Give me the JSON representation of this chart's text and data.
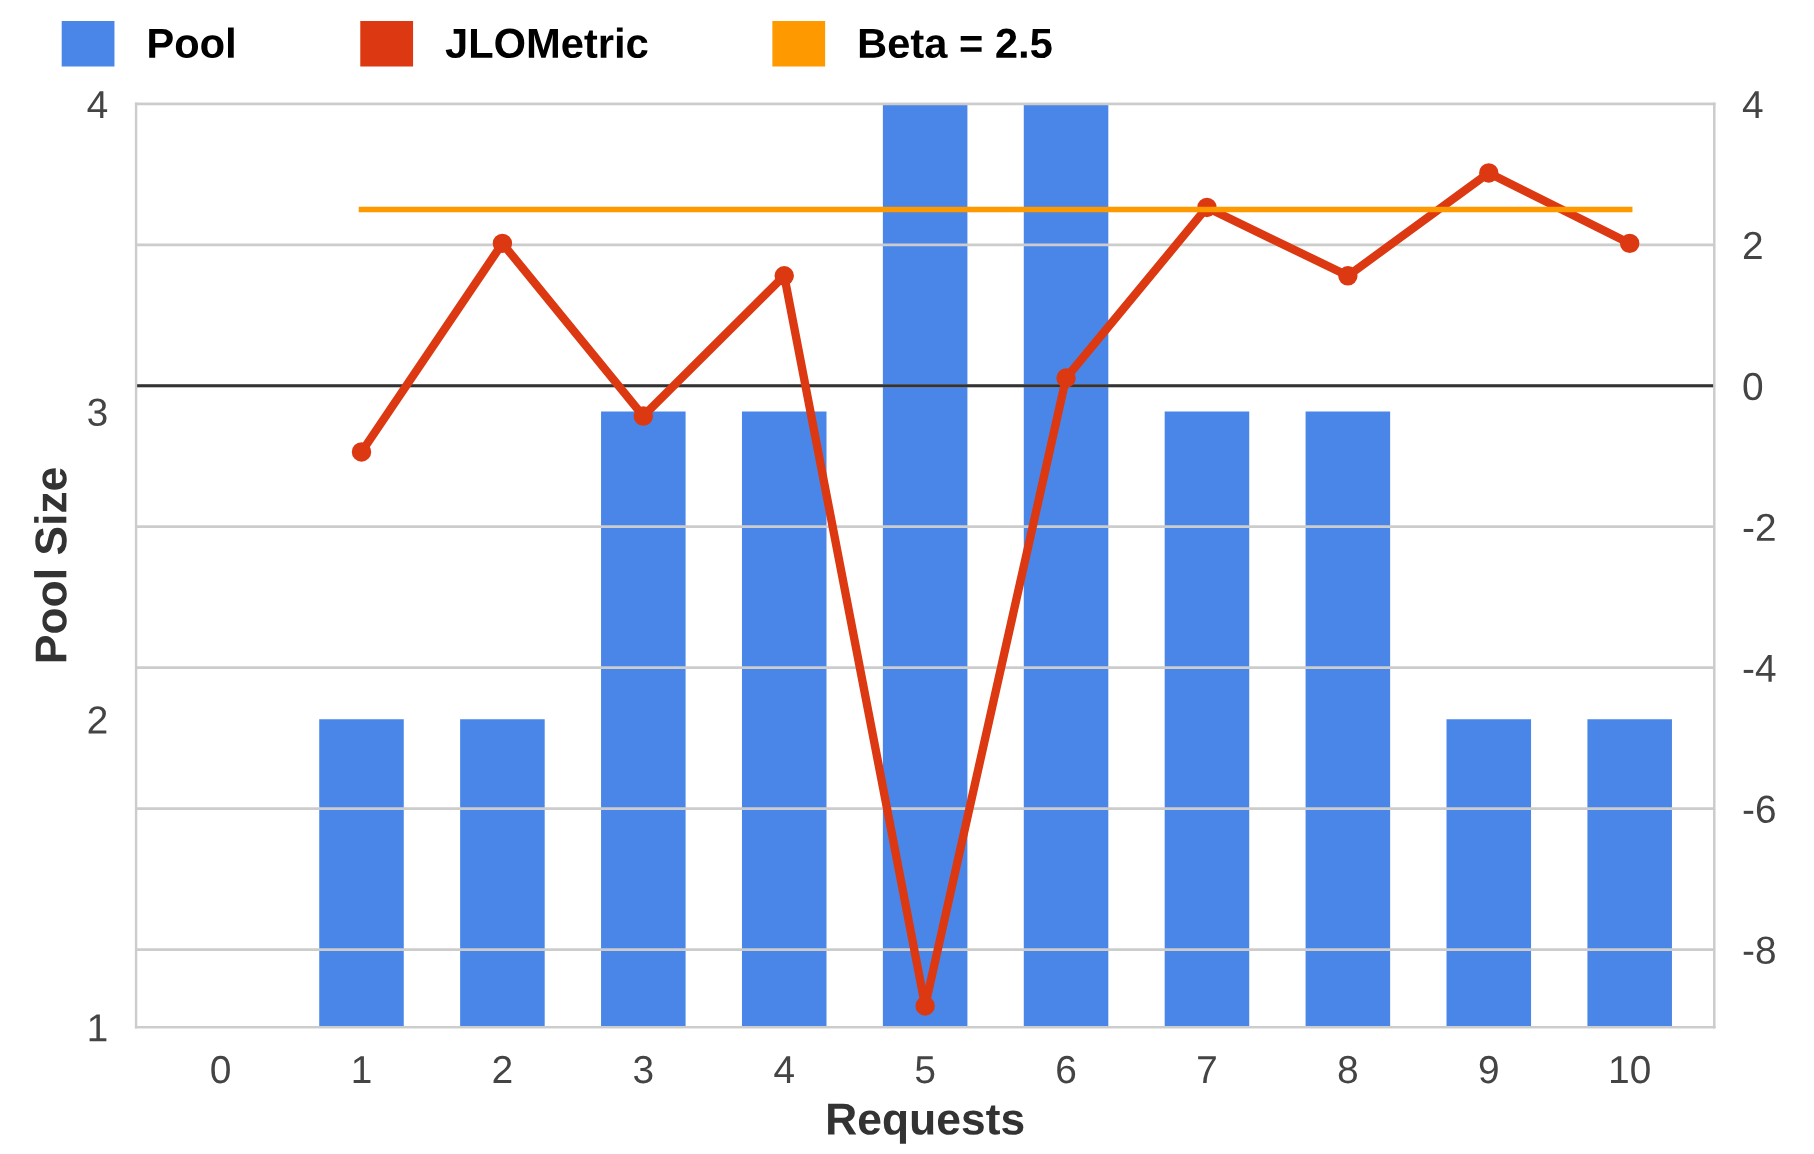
{
  "chart_data": {
    "type": "bar",
    "xlabel": "Requests",
    "ylabel": "Pool Size",
    "categories": [
      "0",
      "1",
      "2",
      "3",
      "4",
      "5",
      "6",
      "7",
      "8",
      "9",
      "10"
    ],
    "series": [
      {
        "name": "Pool",
        "color": "#4a86e8",
        "values": [
          null,
          2,
          2,
          3,
          3,
          4,
          4,
          3,
          3,
          2,
          2
        ]
      },
      {
        "name": "JLOMetric",
        "type": "line",
        "axis": "y2",
        "color": "#dc3912",
        "marker": "circle",
        "values": [
          null,
          -0.94,
          2.02,
          -0.43,
          1.56,
          -8.8,
          0.11,
          2.53,
          1.56,
          3.02,
          2.02
        ]
      },
      {
        "name": "Beta = 2.5",
        "type": "line",
        "axis": "y2",
        "color": "#ff9900",
        "marker": "none",
        "values": [
          null,
          2.5,
          2.5,
          2.5,
          2.5,
          2.5,
          2.5,
          2.5,
          2.5,
          2.5,
          2.5
        ]
      }
    ],
    "ylim": [
      1,
      4
    ],
    "yticks": [
      1,
      2,
      3,
      4
    ],
    "y2lim": [
      -9.1,
      4
    ],
    "y2ticks": [
      -8,
      -6,
      -4,
      -2,
      0,
      2,
      4
    ],
    "ref_lines": [
      {
        "axis": "y2",
        "value": 0,
        "color": "#333333"
      }
    ],
    "grid": "y",
    "legend": "top left"
  }
}
